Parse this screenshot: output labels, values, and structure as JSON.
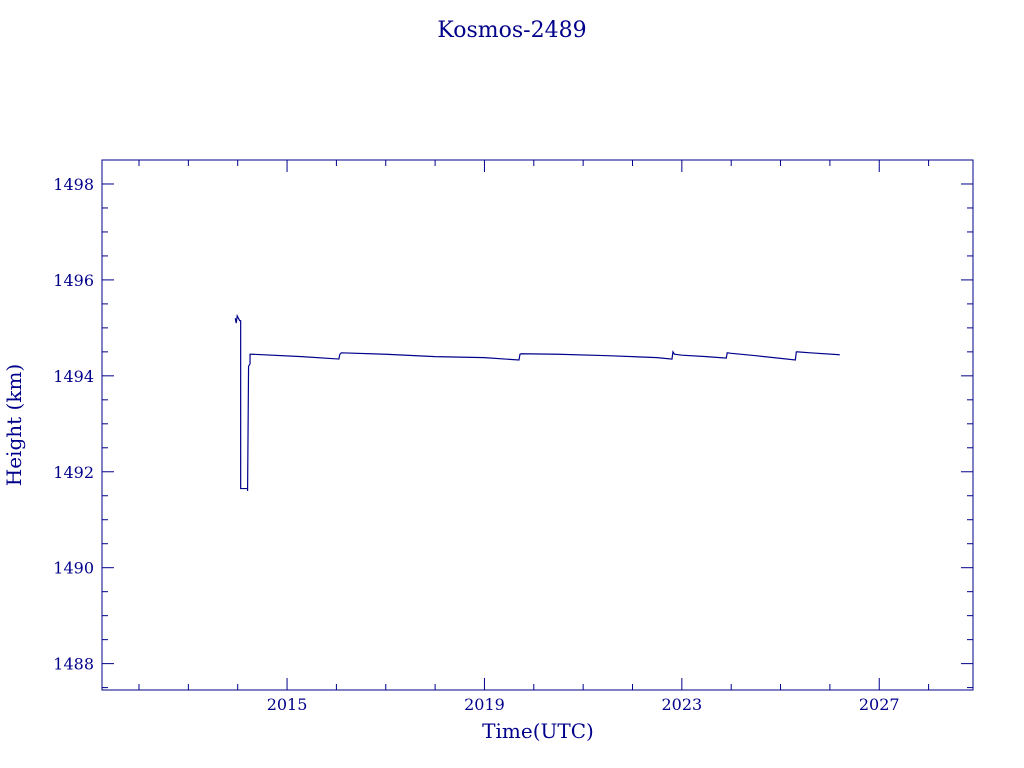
{
  "chart_data": {
    "type": "line",
    "title": "Kosmos-2489",
    "xlabel": "Time(UTC)",
    "ylabel": "Height (km)",
    "xlim": [
      2011.25,
      2028.9
    ],
    "ylim": [
      1487.45,
      1498.5
    ],
    "x_ticks": [
      2015,
      2019,
      2023,
      2027
    ],
    "x_minor_step": 1,
    "y_ticks": [
      1488,
      1490,
      1492,
      1494,
      1496,
      1498
    ],
    "y_minor_step": 0.5,
    "grid": false,
    "color": "#00008b",
    "series": [
      {
        "x": [
          2013.95,
          2013.97,
          2013.99,
          2014.04,
          2014.06,
          2014.06,
          2014.2,
          2014.2,
          2014.22,
          2014.25,
          2014.25,
          2014.3,
          2015.3,
          2016.05,
          2016.07,
          2016.1,
          2017.0,
          2018.0,
          2019.0,
          2019.7,
          2019.72,
          2019.75,
          2020.5,
          2021.5,
          2022.5,
          2022.8,
          2022.82,
          2022.85,
          2023.0,
          2023.5,
          2023.9,
          2023.92,
          2024.0,
          2024.5,
          2025.3,
          2025.32,
          2025.35,
          2025.6,
          2026.2
        ],
        "values": [
          1495.2,
          1495.1,
          1495.25,
          1495.15,
          1495.15,
          1491.65,
          1491.65,
          1491.6,
          1494.2,
          1494.25,
          1494.45,
          1494.45,
          1494.4,
          1494.35,
          1494.45,
          1494.48,
          1494.45,
          1494.4,
          1494.38,
          1494.33,
          1494.45,
          1494.46,
          1494.45,
          1494.42,
          1494.38,
          1494.35,
          1494.5,
          1494.45,
          1494.43,
          1494.4,
          1494.37,
          1494.48,
          1494.47,
          1494.42,
          1494.33,
          1494.5,
          1494.5,
          1494.48,
          1494.44
        ]
      }
    ]
  }
}
